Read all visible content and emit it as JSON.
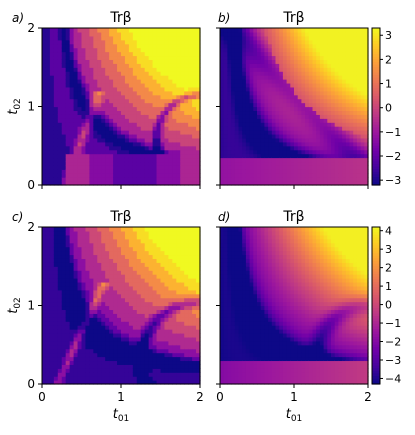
{
  "chart_data": [
    {
      "type": "heatmap",
      "panel_label": "a)",
      "title": "Trβ",
      "xlabel": "",
      "ylabel": "t02",
      "xlim": [
        0,
        2
      ],
      "ylim": [
        0,
        2
      ],
      "x_ticks": [
        "0",
        "1",
        "2"
      ],
      "y_ticks": [
        "0",
        "1",
        "2"
      ],
      "colormap": "plasma",
      "value_range": [
        -3.2,
        3.3
      ]
    },
    {
      "type": "heatmap",
      "panel_label": "b)",
      "title": "Trβ",
      "xlabel": "",
      "ylabel": "",
      "xlim": [
        0,
        2
      ],
      "ylim": [
        0,
        2
      ],
      "x_ticks": [
        "0",
        "1",
        "2"
      ],
      "y_ticks": [
        "0",
        "1",
        "2"
      ],
      "colormap": "plasma",
      "value_range": [
        -3.2,
        3.3
      ],
      "colorbar_ticks": [
        "3",
        "2",
        "1",
        "0",
        "−1",
        "−2",
        "−3"
      ]
    },
    {
      "type": "heatmap",
      "panel_label": "c)",
      "title": "Trβ",
      "xlabel": "t01",
      "ylabel": "t02",
      "xlim": [
        0,
        2
      ],
      "ylim": [
        0,
        2
      ],
      "x_ticks": [
        "0",
        "1",
        "2"
      ],
      "y_ticks": [
        "0",
        "1",
        "2"
      ],
      "colormap": "plasma",
      "value_range": [
        -4.3,
        4.2
      ]
    },
    {
      "type": "heatmap",
      "panel_label": "d)",
      "title": "Trβ",
      "xlabel": "t01",
      "ylabel": "",
      "xlim": [
        0,
        2
      ],
      "ylim": [
        0,
        2
      ],
      "x_ticks": [
        "0",
        "1",
        "2"
      ],
      "y_ticks": [
        "0",
        "1",
        "2"
      ],
      "colormap": "plasma",
      "value_range": [
        -4.3,
        4.2
      ],
      "colorbar_ticks": [
        "4",
        "3",
        "2",
        "1",
        "0",
        "−1",
        "−2",
        "−3",
        "−4"
      ]
    }
  ]
}
